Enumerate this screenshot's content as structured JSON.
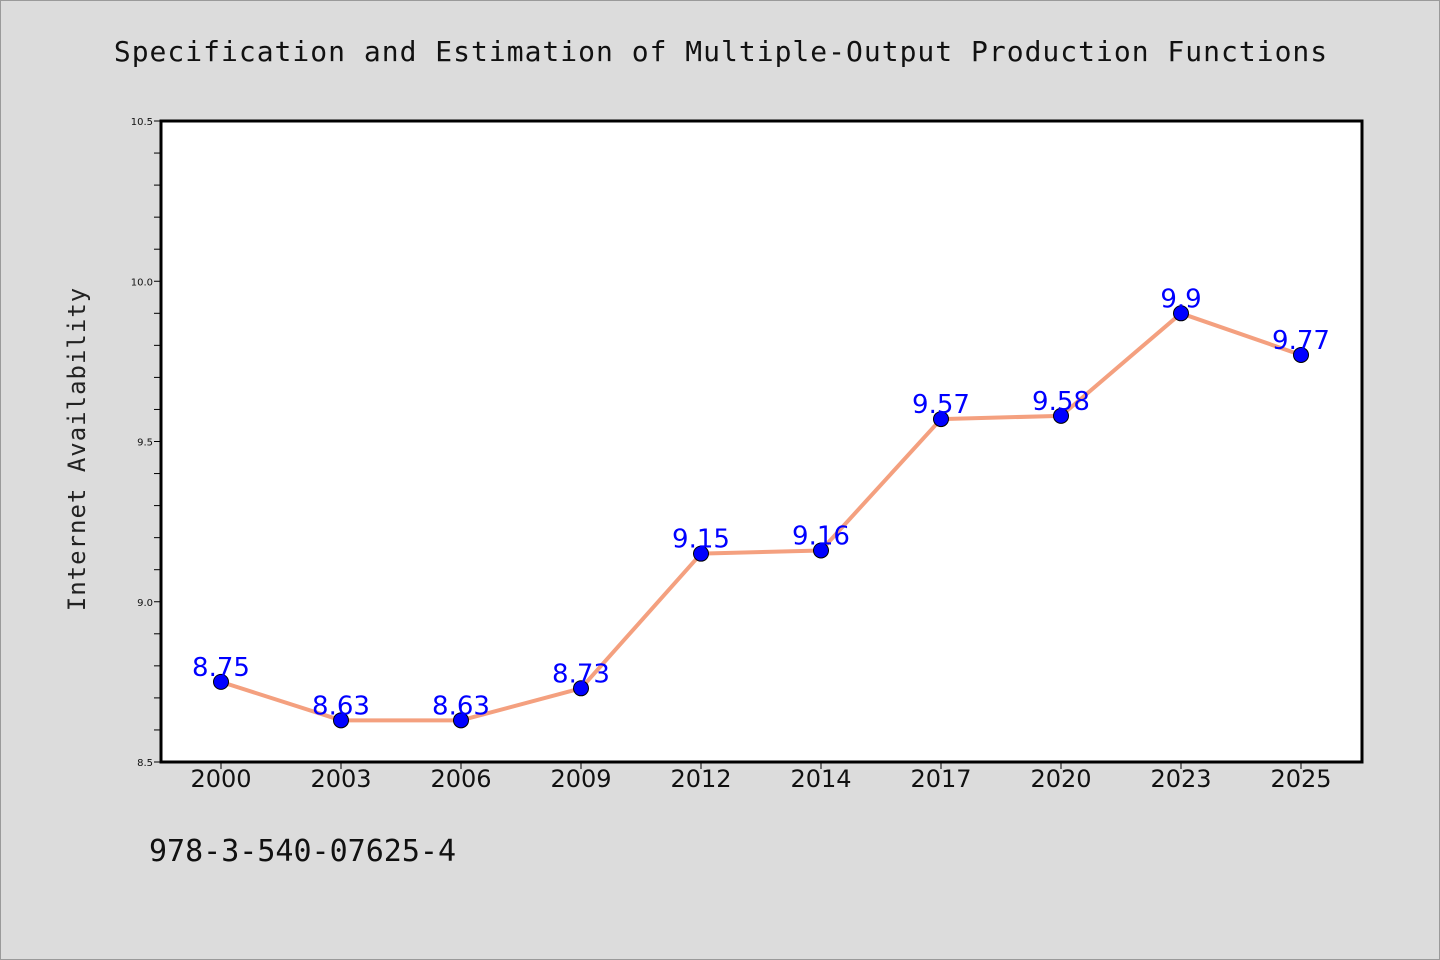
{
  "chart_data": {
    "type": "line",
    "title": "Specification and Estimation of Multiple-Output Production Functions",
    "xlabel": "",
    "ylabel": "Internet Availability",
    "categories": [
      "2000",
      "2003",
      "2006",
      "2009",
      "2012",
      "2014",
      "2017",
      "2020",
      "2023",
      "2025"
    ],
    "series": [
      {
        "values": [
          8.75,
          8.63,
          8.63,
          8.73,
          9.15,
          9.16,
          9.57,
          9.58,
          9.9,
          9.77
        ]
      }
    ],
    "data_labels": [
      "8.75",
      "8.63",
      "8.63",
      "8.73",
      "9.15",
      "9.16",
      "9.57",
      "9.58",
      "9.9",
      "9.77"
    ],
    "ylim": [
      8.5,
      10.5
    ],
    "yticks": [
      "8.5",
      "9.0",
      "9.5",
      "10.0",
      "10.5"
    ],
    "grid": false,
    "line_color": "#f4a07f",
    "marker_color": "#0000ff",
    "label_color": "#0000ff",
    "background_color": "#dcdcdc",
    "plot_background": "#ffffff"
  },
  "footer": {
    "code": "978-3-540-07625-4"
  }
}
